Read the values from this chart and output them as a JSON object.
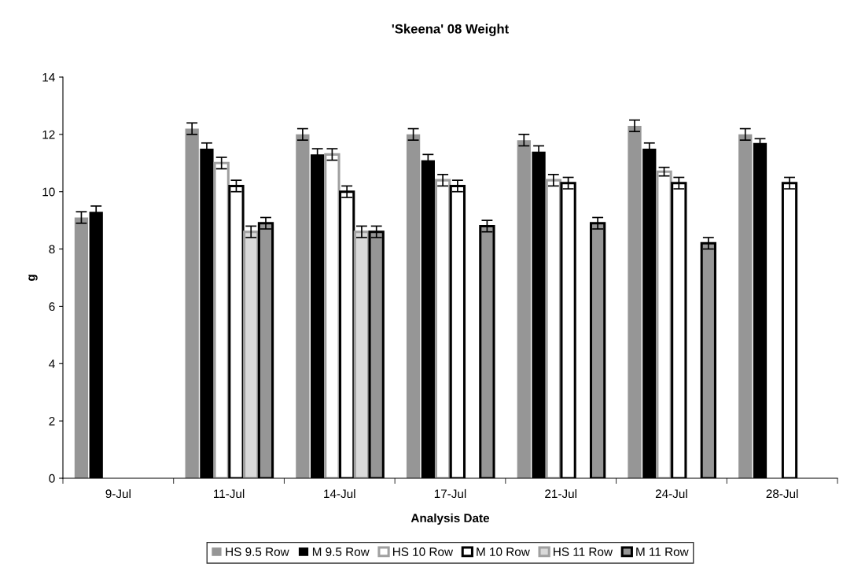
{
  "chart_data": {
    "type": "bar",
    "title": "'Skeena' 08 Weight",
    "xlabel": "Analysis Date",
    "ylabel": "g",
    "categories": [
      "9-Jul",
      "11-Jul",
      "14-Jul",
      "17-Jul",
      "21-Jul",
      "24-Jul",
      "28-Jul"
    ],
    "series": [
      {
        "name": "HS 9.5 Row",
        "color": "#969696",
        "values": [
          9.1,
          12.2,
          12.0,
          12.0,
          11.8,
          12.3,
          12.0
        ],
        "errors": [
          0.2,
          0.2,
          0.2,
          0.2,
          0.2,
          0.2,
          0.2
        ]
      },
      {
        "name": "M 9.5 Row",
        "color": "#000000",
        "values": [
          9.3,
          11.5,
          11.3,
          11.1,
          11.4,
          11.5,
          11.7
        ],
        "errors": [
          0.2,
          0.2,
          0.2,
          0.2,
          0.2,
          0.2,
          0.15
        ]
      },
      {
        "name": "HS 10 Row",
        "color": "#ffffff",
        "values": [
          null,
          11.0,
          11.3,
          10.4,
          10.4,
          10.7,
          null
        ],
        "errors": [
          null,
          0.2,
          0.2,
          0.2,
          0.2,
          0.15,
          null
        ]
      },
      {
        "name": "M 10 Row",
        "color": "#ffffff",
        "values": [
          null,
          10.2,
          10.0,
          10.2,
          10.3,
          10.3,
          10.3
        ],
        "errors": [
          null,
          0.2,
          0.2,
          0.2,
          0.2,
          0.2,
          0.2
        ]
      },
      {
        "name": "HS 11 Row",
        "color": "#d9d9d9",
        "values": [
          null,
          8.6,
          8.6,
          null,
          null,
          null,
          null
        ],
        "errors": [
          null,
          0.2,
          0.2,
          null,
          null,
          null,
          null
        ]
      },
      {
        "name": "M 11 Row",
        "color": "#969696",
        "values": [
          null,
          8.9,
          8.6,
          8.8,
          8.9,
          8.2,
          null
        ],
        "errors": [
          null,
          0.2,
          0.2,
          0.2,
          0.2,
          0.2,
          null
        ]
      }
    ],
    "ylim": [
      0,
      14
    ],
    "yticks": [
      0,
      2,
      4,
      6,
      8,
      10,
      12,
      14
    ],
    "grid": false,
    "legend": "bottom"
  }
}
